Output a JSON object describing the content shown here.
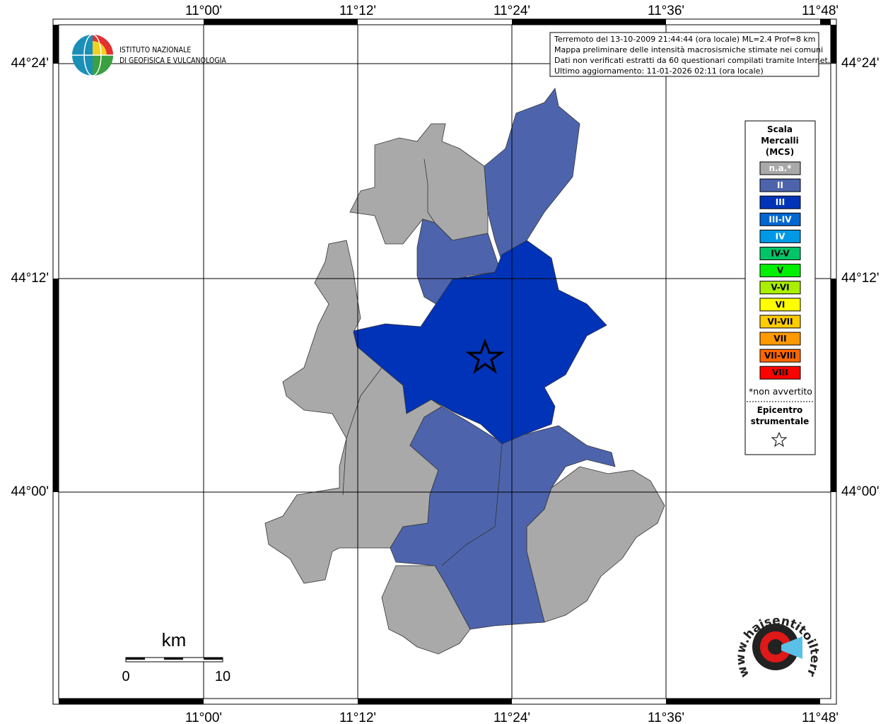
{
  "map": {
    "lon_labels": [
      "11°00'",
      "11°12'",
      "11°24'",
      "11°36'",
      "11°48'"
    ],
    "lat_labels": [
      "44°24'",
      "44°12'",
      "44°00'"
    ],
    "info_lines": [
      "Terremoto del 13-10-2009 21:44:44 (ora locale) ML=2.4 Prof=8 km",
      "Mappa preliminare delle intensità macrosismiche stimate nei comuni",
      "Dati non verificati estratti da 60 questionari compilati tramite Internet.",
      "Ultimo aggiornamento: 11-01-2026 02:11 (ora locale)"
    ],
    "legend": {
      "title": [
        "Scala",
        "Mercalli",
        "(MCS)"
      ],
      "items": [
        {
          "label": "n.a.*",
          "color": "#a9a9a9"
        },
        {
          "label": "II",
          "color": "#4d64ad"
        },
        {
          "label": "III",
          "color": "#0033b8"
        },
        {
          "label": "III-IV",
          "color": "#0066d0"
        },
        {
          "label": "IV",
          "color": "#0099e6"
        },
        {
          "label": "IV-V",
          "color": "#00c466"
        },
        {
          "label": "V",
          "color": "#00ee00"
        },
        {
          "label": "V-VI",
          "color": "#aaee00"
        },
        {
          "label": "VI",
          "color": "#ffff00"
        },
        {
          "label": "VI-VII",
          "color": "#ffcc00"
        },
        {
          "label": "VII",
          "color": "#ff9900"
        },
        {
          "label": "VII-VIII",
          "color": "#ff6600"
        },
        {
          "label": "VIII",
          "color": "#ff0000"
        }
      ],
      "note": "*non avvertito",
      "epicenter": [
        "Epicentro",
        "strumentale"
      ]
    },
    "scale_bar": {
      "unit": "km",
      "labels": [
        "0",
        "10"
      ]
    },
    "ingv_logo": [
      "ISTITUTO NAZIONALE",
      "DI GEOFISICA E VULCANOLOGIA"
    ],
    "hsit_logo": "www.haisentitoilterremoto.it"
  }
}
